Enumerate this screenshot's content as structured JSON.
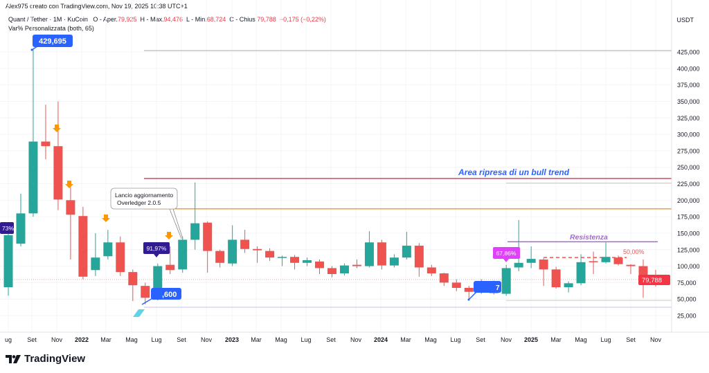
{
  "header": {
    "credit": "Alex975 creato con TradingView.com, Nov 19, 2025 10:38 UTC+1",
    "symbol": "Quant / Tether · 1M · KuCoin",
    "o_label": "O - Aper.",
    "o": "79,925",
    "h_label": "H - Max.",
    "h": "94,476",
    "l_label": "L - Min.",
    "l": "68,724",
    "c_label": "C - Chius.",
    "c": "79,788",
    "change": "−0,175 (−0,22%)",
    "indicator": "Var% Personalizzata (both, 65)",
    "currency": "USDT"
  },
  "brand": {
    "name": "TradingView"
  },
  "colors": {
    "up": "#26a69a",
    "down": "#ef5350",
    "red_line": "#e0455a",
    "orange_line": "#f0a040",
    "purple": "#a566d6",
    "blue_label": "#2962ff"
  },
  "annotations": {
    "bull_area": "Area ripresa di un bull trend",
    "resistance": "Resistenza",
    "fib": "50,00%",
    "callout": [
      "Lancio aggiornamento",
      "Overledger 2.0.5"
    ],
    "labels": {
      "ath": "429,695",
      "pct_left": "73%",
      "pct_2022": "91,97%",
      "low_2022": ",600",
      "pct_2024": "67,86%",
      "low_2024": "7"
    },
    "current_price": "79,788"
  },
  "chart_data": {
    "type": "candlestick",
    "ylim": [
      0,
      460000
    ],
    "y_ticks": [
      "425,000",
      "400,000",
      "375,000",
      "350,000",
      "325,000",
      "300,000",
      "275,000",
      "250,000",
      "225,000",
      "200,000",
      "175,000",
      "150,000",
      "125,000",
      "100,000",
      "75,000",
      "50,000",
      "25,000"
    ],
    "x_ticks": [
      "ug",
      "Set",
      "Nov",
      "2022",
      "Mar",
      "Mag",
      "Lug",
      "Set",
      "Nov",
      "2023",
      "Mar",
      "Mag",
      "Lug",
      "Set",
      "Nov",
      "2024",
      "Mar",
      "Mag",
      "Lug",
      "Set",
      "Nov",
      "2025",
      "Mar",
      "Mag",
      "Lug",
      "Set",
      "Nov"
    ],
    "ohlc": [
      [
        68,
        155,
        55,
        147
      ],
      [
        134,
        210,
        130,
        180
      ],
      [
        180,
        429.695,
        175,
        289
      ],
      [
        289,
        345,
        262,
        282
      ],
      [
        282,
        350,
        185,
        201
      ],
      [
        200,
        220,
        110,
        178
      ],
      [
        176,
        190,
        80,
        84
      ],
      [
        94,
        150,
        85,
        113
      ],
      [
        115,
        155,
        110,
        136
      ],
      [
        136,
        145,
        85,
        91
      ],
      [
        91,
        95,
        47,
        71
      ],
      [
        70,
        75,
        42,
        52
      ],
      [
        52,
        104,
        48,
        100
      ],
      [
        102,
        130,
        88,
        94
      ],
      [
        95,
        145,
        90,
        140
      ],
      [
        140,
        227,
        125,
        165
      ],
      [
        166,
        168,
        90,
        123
      ],
      [
        123,
        125,
        98,
        105
      ],
      [
        104,
        162,
        100,
        140
      ],
      [
        140,
        155,
        120,
        126
      ],
      [
        126,
        130,
        105,
        124
      ],
      [
        123,
        127,
        108,
        113
      ],
      [
        113,
        116,
        100,
        114
      ],
      [
        114,
        117,
        95,
        105
      ],
      [
        105,
        113,
        100,
        109
      ],
      [
        107,
        110,
        88,
        97
      ],
      [
        97,
        100,
        83,
        88
      ],
      [
        89,
        104,
        86,
        101
      ],
      [
        102,
        110,
        97,
        100
      ],
      [
        100,
        153,
        98,
        136
      ],
      [
        136,
        140,
        95,
        101
      ],
      [
        101,
        118,
        98,
        113
      ],
      [
        113,
        152,
        110,
        131
      ],
      [
        131,
        135,
        84,
        98
      ],
      [
        98,
        102,
        85,
        89
      ],
      [
        89,
        90,
        70,
        75
      ],
      [
        75,
        80,
        62,
        67
      ],
      [
        67,
        70,
        50,
        61
      ],
      [
        61,
        80,
        58,
        73
      ],
      [
        72,
        78,
        57,
        59
      ],
      [
        58,
        102,
        55,
        97
      ],
      [
        98,
        170,
        92,
        105
      ],
      [
        105,
        130,
        97,
        111
      ],
      [
        110,
        112,
        70,
        95
      ],
      [
        95,
        99,
        66,
        68
      ],
      [
        68,
        77,
        60,
        74
      ],
      [
        74,
        118,
        71,
        106
      ],
      [
        107.5,
        122,
        88,
        107
      ],
      [
        106,
        136,
        104,
        114
      ],
      [
        113,
        116,
        101,
        103
      ],
      [
        102,
        103,
        88,
        100
      ],
      [
        100,
        110,
        52,
        79.925
      ],
      [
        79.925,
        94.476,
        68.724,
        79.788
      ]
    ],
    "levels": {
      "gray_top": 427,
      "red": 233,
      "orange": 187,
      "gray_upper": 226,
      "resistance": 137,
      "fib_50": 113,
      "gray_lower": 48,
      "bottom": 37.6
    },
    "units": "thousand USDT"
  }
}
